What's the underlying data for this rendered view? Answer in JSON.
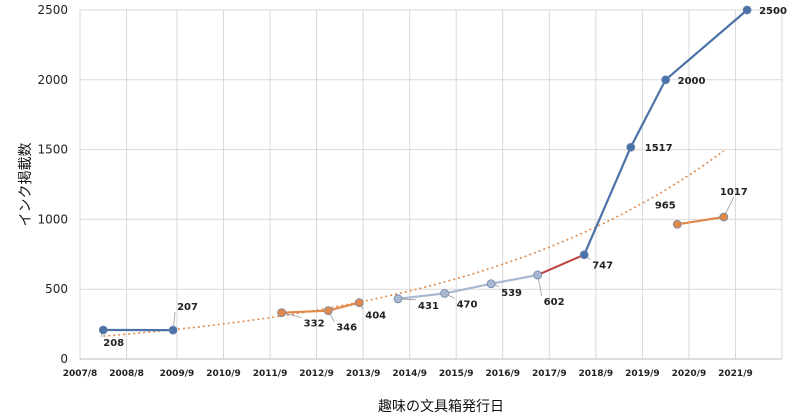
{
  "chart_data": {
    "type": "line",
    "xlabel": "趣味の文具箱発行日",
    "ylabel": "インク掲載数",
    "ylim": [
      0,
      2500
    ],
    "yticks": [
      "0",
      "500",
      "1000",
      "1500",
      "2000",
      "2500"
    ],
    "xticks": [
      "2007/8",
      "2008/8",
      "2009/9",
      "2010/9",
      "2011/9",
      "2012/9",
      "2013/9",
      "2014/9",
      "2015/9",
      "2016/9",
      "2017/9",
      "2018/9",
      "2019/9",
      "2020/9",
      "2021/9"
    ],
    "grid": true,
    "trendline": "exponential",
    "series": [
      {
        "color": "#4a72a8",
        "points": [
          {
            "x": "2008/2",
            "y": 208,
            "label": "208"
          },
          {
            "x": "2009/8",
            "y": 207,
            "label": "207"
          }
        ]
      },
      {
        "color": "#e0894a",
        "points": [
          {
            "x": "2011/12",
            "y": 332,
            "label": "332"
          },
          {
            "x": "2012/12",
            "y": 346,
            "label": "346"
          },
          {
            "x": "2013/8",
            "y": 404,
            "label": "404"
          }
        ]
      },
      {
        "color": "#a8b8d0",
        "points": [
          {
            "x": "2014/6",
            "y": 431,
            "label": "431"
          },
          {
            "x": "2015/6",
            "y": 470,
            "label": "470"
          },
          {
            "x": "2016/6",
            "y": 539,
            "label": "539"
          },
          {
            "x": "2017/6",
            "y": 602,
            "label": "602"
          }
        ]
      },
      {
        "color": "#4a72a8",
        "points": [
          {
            "x": "2018/6",
            "y": 747,
            "label": "747"
          },
          {
            "x": "2019/6",
            "y": 1517,
            "label": "1517"
          },
          {
            "x": "2020/3",
            "y": 2000,
            "label": "2000"
          },
          {
            "x": "2021/12",
            "y": 2500,
            "label": "2500"
          }
        ]
      },
      {
        "color": "#e0894a",
        "points": [
          {
            "x": "2020/6",
            "y": 965,
            "label": "965"
          },
          {
            "x": "2021/6",
            "y": 1017,
            "label": "1017"
          }
        ]
      }
    ],
    "connectors": [
      {
        "from": "2017/6",
        "to": "2018/6",
        "color": "#c04040"
      }
    ]
  }
}
